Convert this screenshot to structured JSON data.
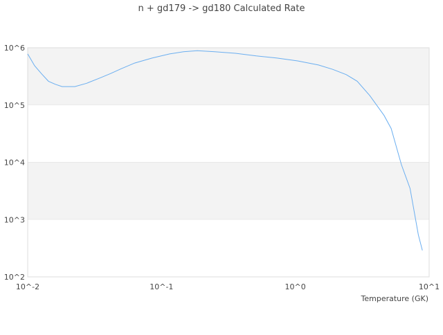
{
  "chart_data": {
    "type": "line",
    "title": "n + gd179 -> gd180 Calculated Rate",
    "xlabel": "Temperature (GK)",
    "ylabel": "",
    "x_scale": "log",
    "y_scale": "log",
    "xlim": [
      0.01,
      10
    ],
    "ylim": [
      100,
      1000000
    ],
    "x_ticks": [
      "10^-2",
      "10^-1",
      "10^0",
      "10^1"
    ],
    "y_ticks": [
      "10^2",
      "10^3",
      "10^4",
      "10^5",
      "10^6"
    ],
    "grid": true,
    "band_colors": [
      "#f3f3f3",
      "#ffffff"
    ],
    "line_color": "#6aaef0",
    "series": [
      {
        "x": [
          0.01,
          0.01127,
          0.0127,
          0.0143,
          0.0161,
          0.0181,
          0.0225,
          0.0276,
          0.035,
          0.0417,
          0.05,
          0.063,
          0.085,
          0.115,
          0.146,
          0.185,
          0.25,
          0.357,
          0.51,
          0.73,
          1.04,
          1.49,
          1.9,
          2.4,
          2.9,
          3.6,
          4.6,
          5.2,
          6.2,
          7.2,
          8.3,
          8.9
        ],
        "y": [
          780000,
          485000,
          350000,
          260000,
          230000,
          210000,
          210000,
          240000,
          300000,
          355000,
          430000,
          540000,
          660000,
          780000,
          850000,
          890000,
          850000,
          800000,
          720000,
          660000,
          590000,
          500000,
          420000,
          340000,
          260000,
          146000,
          66000,
          39000,
          9100,
          3500,
          540,
          290
        ]
      }
    ]
  }
}
